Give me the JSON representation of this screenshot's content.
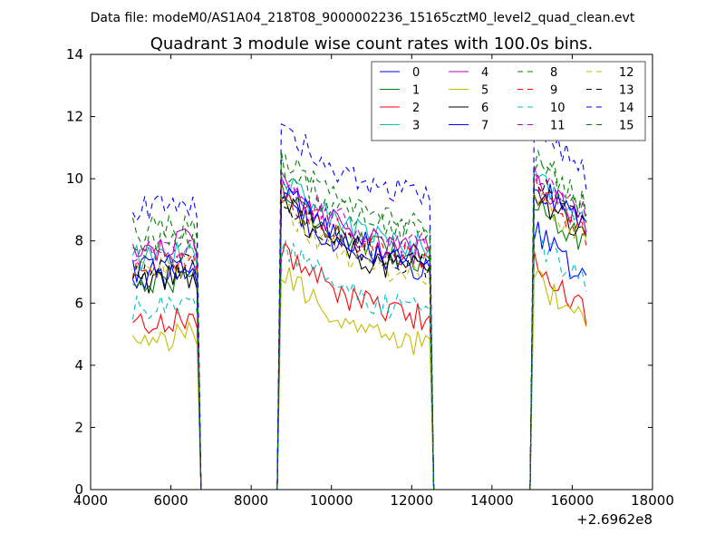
{
  "chart_data": {
    "type": "line",
    "suptitle": "Data file: modeM0/AS1A04_218T08_9000002236_15165cztM0_level2_quad_clean.evt",
    "title": "Quadrant 3 module wise count rates with 100.0s bins.",
    "xlabel": "",
    "ylabel": "",
    "x_offset_label": "+2.6962e8",
    "xlim": [
      4000,
      18000
    ],
    "ylim": [
      0,
      14
    ],
    "xticks": [
      4000,
      6000,
      8000,
      10000,
      12000,
      14000,
      16000,
      18000
    ],
    "yticks": [
      0,
      2,
      4,
      6,
      8,
      10,
      12,
      14
    ],
    "grid": false,
    "legend_position": "top-right",
    "legend_columns": 4,
    "x_segments": [
      {
        "start": 5050,
        "end": 6650,
        "step": 100
      },
      {
        "start": 8750,
        "end": 12450,
        "step": 100
      },
      {
        "start": 15050,
        "end": 16350,
        "step": 100
      }
    ],
    "zero_segments": [
      {
        "start": 6750,
        "end": 8650
      },
      {
        "start": 12550,
        "end": 14950
      }
    ],
    "series": [
      {
        "name": "0",
        "color": "#0000ff",
        "dash": "solid",
        "levels": [
          7.0,
          7.5,
          7.2
        ]
      },
      {
        "name": "1",
        "color": "#008000",
        "dash": "solid",
        "levels": [
          6.8,
          7.8,
          8.3
        ]
      },
      {
        "name": "2",
        "color": "#ff0000",
        "dash": "solid",
        "levels": [
          5.5,
          5.9,
          6.2
        ]
      },
      {
        "name": "3",
        "color": "#00bfbf",
        "dash": "solid",
        "levels": [
          7.6,
          8.2,
          9.0
        ]
      },
      {
        "name": "4",
        "color": "#bf00bf",
        "dash": "solid",
        "levels": [
          7.9,
          8.0,
          8.9
        ]
      },
      {
        "name": "5",
        "color": "#bfbf00",
        "dash": "solid",
        "levels": [
          4.9,
          5.1,
          5.7
        ]
      },
      {
        "name": "6",
        "color": "#000000",
        "dash": "solid",
        "levels": [
          6.8,
          7.4,
          8.5
        ]
      },
      {
        "name": "7",
        "color": "#0000ff",
        "dash": "solid",
        "levels": [
          7.2,
          7.8,
          8.8
        ]
      },
      {
        "name": "8",
        "color": "#008000",
        "dash": "dashed",
        "levels": [
          8.5,
          8.8,
          9.5
        ]
      },
      {
        "name": "9",
        "color": "#ff0000",
        "dash": "dashed",
        "levels": [
          7.4,
          7.8,
          8.6
        ]
      },
      {
        "name": "10",
        "color": "#00bfbf",
        "dash": "dashed",
        "levels": [
          6.0,
          6.1,
          7.0
        ]
      },
      {
        "name": "11",
        "color": "#bf00bf",
        "dash": "dashed",
        "levels": [
          7.8,
          8.2,
          9.2
        ]
      },
      {
        "name": "12",
        "color": "#bfbf00",
        "dash": "dashed",
        "levels": [
          7.2,
          7.2,
          8.4
        ]
      },
      {
        "name": "13",
        "color": "#000000",
        "dash": "dashed",
        "levels": [
          7.1,
          7.6,
          8.8
        ]
      },
      {
        "name": "14",
        "color": "#0000ff",
        "dash": "dashed",
        "levels": [
          9.2,
          9.8,
          10.6
        ]
      },
      {
        "name": "15",
        "color": "#008000",
        "dash": "dashed",
        "levels": [
          8.0,
          8.6,
          9.6
        ]
      }
    ]
  }
}
